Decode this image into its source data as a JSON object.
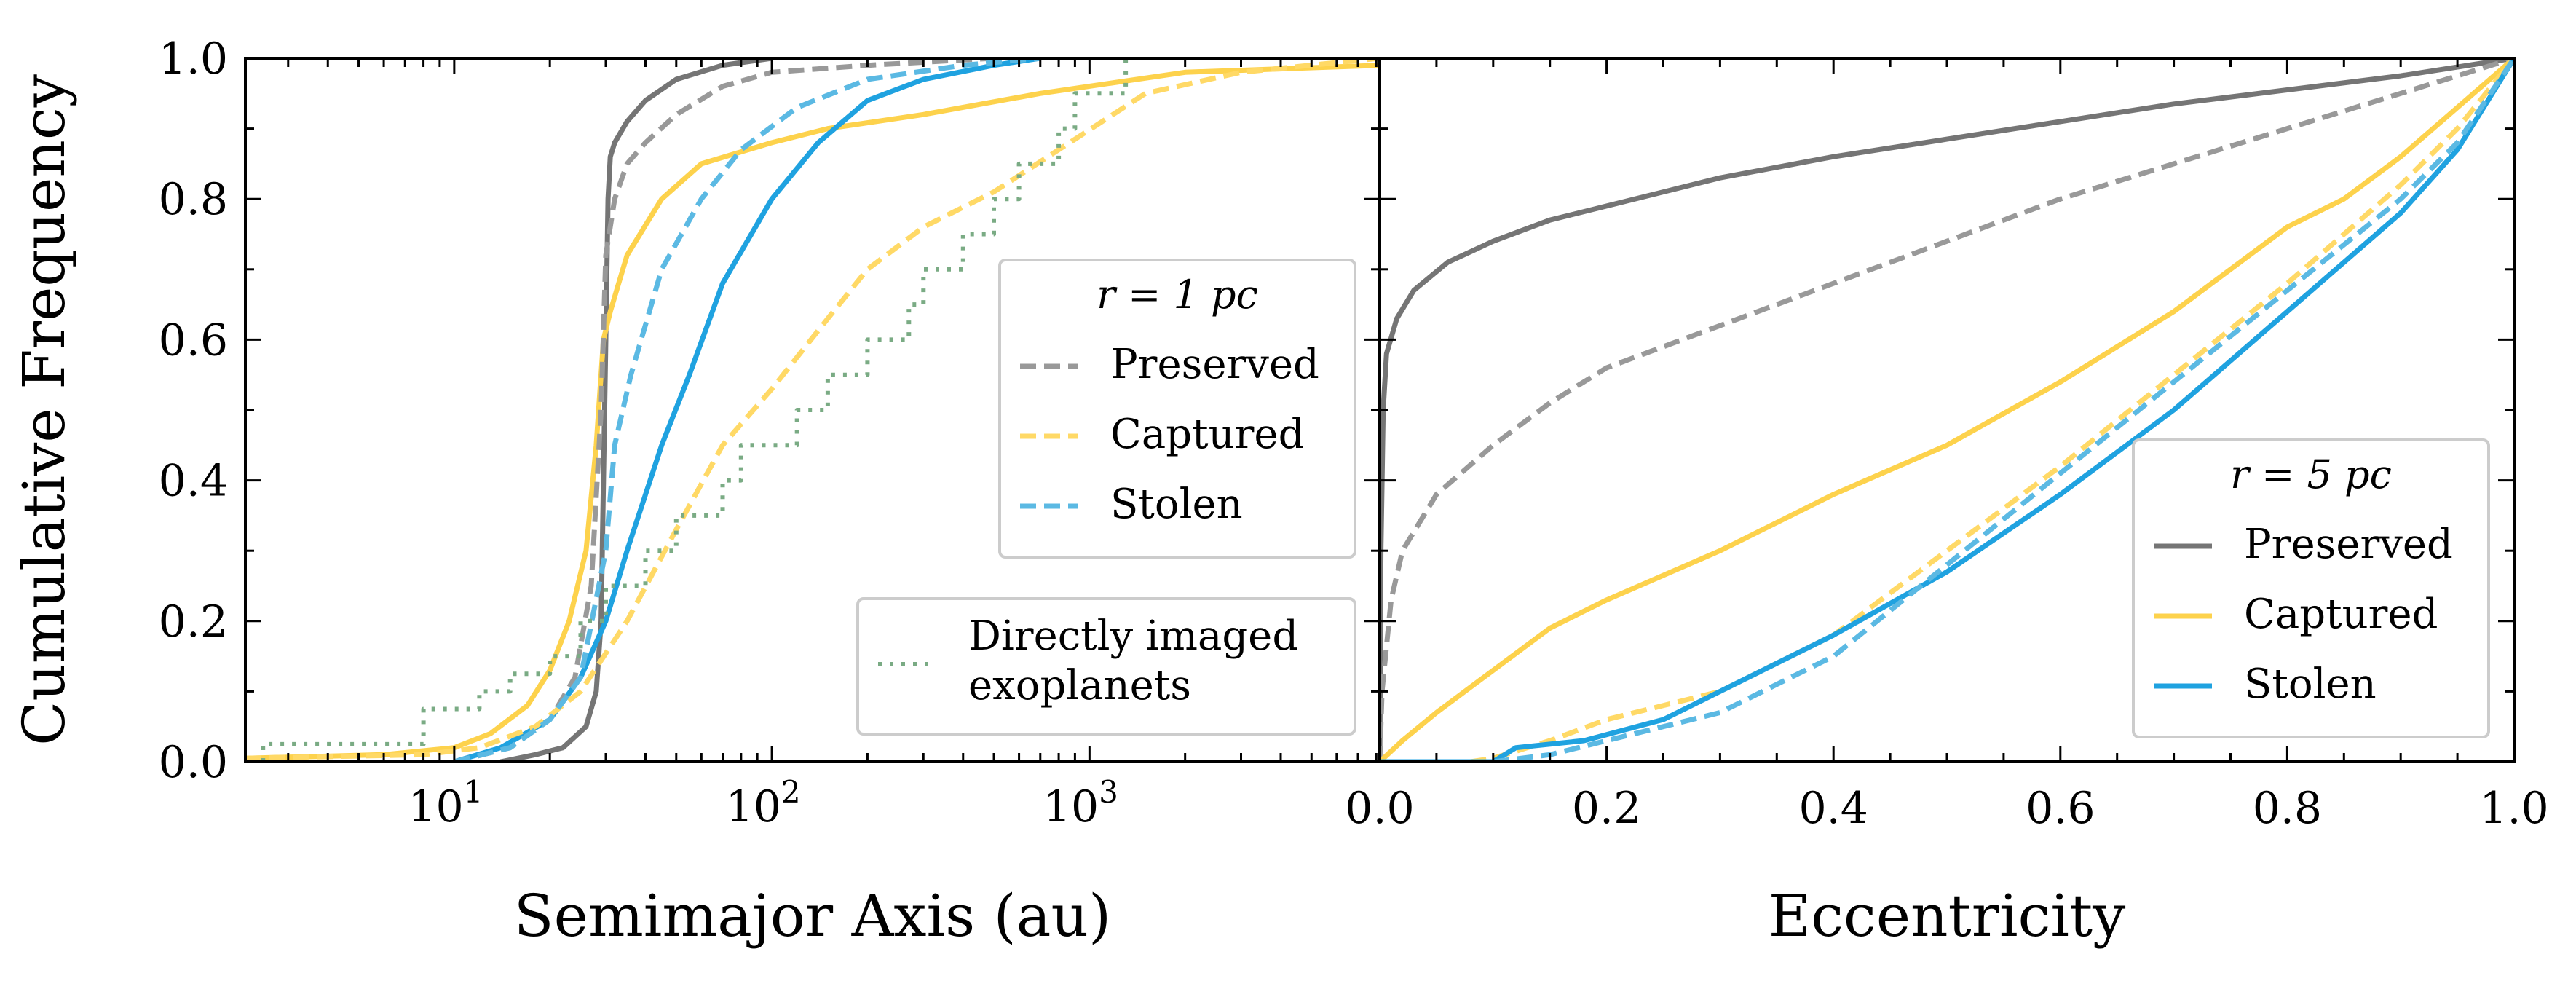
{
  "figure": {
    "ylabel": "Cumulative Frequency"
  },
  "chart_data": [
    {
      "type": "line",
      "panel": "left",
      "xlabel": "Semimajor Axis (au)",
      "ylabel": "Cumulative Frequency",
      "xscale": "log",
      "xlim": [
        2.2,
        8200
      ],
      "ylim": [
        0,
        1
      ],
      "xtick_labels": [
        {
          "base": "10",
          "exp": "1",
          "value": 10
        },
        {
          "base": "10",
          "exp": "2",
          "value": 100
        },
        {
          "base": "10",
          "exp": "3",
          "value": 1000
        }
      ],
      "ytick_labels": [
        "0.0",
        "0.2",
        "0.4",
        "0.6",
        "0.8",
        "1.0"
      ],
      "legends": [
        {
          "placement": "center-right",
          "title": "r = 1 pc",
          "entries": [
            {
              "label": "Preserved",
              "color": "#999999",
              "style": "dashed"
            },
            {
              "label": "Captured",
              "color": "#ffd966",
              "style": "dashed"
            },
            {
              "label": "Stolen",
              "color": "#5bb9e3",
              "style": "dashed"
            }
          ]
        },
        {
          "placement": "lower-right",
          "title": "",
          "entries": [
            {
              "label": "Directly imaged",
              "label2": "exoplanets",
              "color": "#7aab84",
              "style": "dotted"
            }
          ]
        }
      ],
      "series": [
        {
          "key": "preserved_5pc",
          "color": "#757575",
          "style": "solid",
          "points": [
            [
              14,
              0
            ],
            [
              18,
              0.01
            ],
            [
              22,
              0.02
            ],
            [
              26,
              0.05
            ],
            [
              28,
              0.1
            ],
            [
              29,
              0.2
            ],
            [
              29.5,
              0.4
            ],
            [
              30,
              0.6
            ],
            [
              30.5,
              0.8
            ],
            [
              31,
              0.86
            ],
            [
              32,
              0.88
            ],
            [
              35,
              0.91
            ],
            [
              40,
              0.94
            ],
            [
              50,
              0.97
            ],
            [
              70,
              0.99
            ],
            [
              100,
              1.0
            ]
          ]
        },
        {
          "key": "captured_5pc",
          "color": "#fdd24c",
          "style": "solid",
          "points": [
            [
              2.2,
              0.005
            ],
            [
              6,
              0.01
            ],
            [
              10,
              0.02
            ],
            [
              13,
              0.04
            ],
            [
              17,
              0.08
            ],
            [
              20,
              0.13
            ],
            [
              23,
              0.2
            ],
            [
              26,
              0.3
            ],
            [
              28,
              0.45
            ],
            [
              29.5,
              0.6
            ],
            [
              31,
              0.64
            ],
            [
              35,
              0.72
            ],
            [
              45,
              0.8
            ],
            [
              60,
              0.85
            ],
            [
              100,
              0.88
            ],
            [
              150,
              0.9
            ],
            [
              300,
              0.92
            ],
            [
              700,
              0.95
            ],
            [
              2000,
              0.98
            ],
            [
              8200,
              0.99
            ]
          ]
        },
        {
          "key": "stolen_5pc",
          "color": "#1fa2e0",
          "style": "solid",
          "points": [
            [
              10,
              0
            ],
            [
              14,
              0.02
            ],
            [
              20,
              0.06
            ],
            [
              25,
              0.12
            ],
            [
              30,
              0.2
            ],
            [
              35,
              0.3
            ],
            [
              45,
              0.45
            ],
            [
              55,
              0.55
            ],
            [
              70,
              0.68
            ],
            [
              100,
              0.8
            ],
            [
              140,
              0.88
            ],
            [
              200,
              0.94
            ],
            [
              300,
              0.97
            ],
            [
              500,
              0.99
            ],
            [
              700,
              1.0
            ]
          ]
        },
        {
          "key": "preserved_1pc",
          "color": "#999999",
          "style": "dashed",
          "points": [
            [
              10,
              0
            ],
            [
              15,
              0.02
            ],
            [
              20,
              0.06
            ],
            [
              24,
              0.12
            ],
            [
              27,
              0.25
            ],
            [
              29,
              0.5
            ],
            [
              30,
              0.72
            ],
            [
              32,
              0.8
            ],
            [
              35,
              0.85
            ],
            [
              40,
              0.88
            ],
            [
              50,
              0.92
            ],
            [
              70,
              0.96
            ],
            [
              100,
              0.98
            ],
            [
              200,
              0.99
            ],
            [
              500,
              1.0
            ]
          ]
        },
        {
          "key": "captured_1pc",
          "color": "#ffd966",
          "style": "dashed",
          "points": [
            [
              2.2,
              0.005
            ],
            [
              8,
              0.01
            ],
            [
              12,
              0.02
            ],
            [
              18,
              0.05
            ],
            [
              25,
              0.1
            ],
            [
              35,
              0.2
            ],
            [
              50,
              0.33
            ],
            [
              70,
              0.45
            ],
            [
              100,
              0.53
            ],
            [
              150,
              0.63
            ],
            [
              200,
              0.7
            ],
            [
              300,
              0.76
            ],
            [
              500,
              0.81
            ],
            [
              800,
              0.87
            ],
            [
              1500,
              0.95
            ],
            [
              3000,
              0.98
            ],
            [
              8200,
              1.0
            ]
          ]
        },
        {
          "key": "stolen_1pc",
          "color": "#5bb9e3",
          "style": "dashed",
          "points": [
            [
              10,
              0
            ],
            [
              15,
              0.02
            ],
            [
              20,
              0.06
            ],
            [
              25,
              0.12
            ],
            [
              30,
              0.3
            ],
            [
              32,
              0.45
            ],
            [
              36,
              0.55
            ],
            [
              45,
              0.7
            ],
            [
              60,
              0.8
            ],
            [
              80,
              0.87
            ],
            [
              120,
              0.93
            ],
            [
              200,
              0.97
            ],
            [
              400,
              0.99
            ],
            [
              700,
              1.0
            ]
          ]
        },
        {
          "key": "directly_imaged",
          "color": "#7aab84",
          "style": "dotted",
          "step": true,
          "points": [
            [
              2.5,
              0.0
            ],
            [
              2.5,
              0.025
            ],
            [
              8,
              0.025
            ],
            [
              8,
              0.075
            ],
            [
              12,
              0.075
            ],
            [
              12,
              0.1
            ],
            [
              15,
              0.1
            ],
            [
              15,
              0.125
            ],
            [
              20,
              0.125
            ],
            [
              20,
              0.15
            ],
            [
              25,
              0.15
            ],
            [
              25,
              0.2
            ],
            [
              30,
              0.2
            ],
            [
              30,
              0.25
            ],
            [
              40,
              0.25
            ],
            [
              40,
              0.3
            ],
            [
              50,
              0.3
            ],
            [
              50,
              0.35
            ],
            [
              70,
              0.35
            ],
            [
              70,
              0.4
            ],
            [
              80,
              0.4
            ],
            [
              80,
              0.45
            ],
            [
              120,
              0.45
            ],
            [
              120,
              0.5
            ],
            [
              150,
              0.5
            ],
            [
              150,
              0.55
            ],
            [
              200,
              0.55
            ],
            [
              200,
              0.6
            ],
            [
              270,
              0.6
            ],
            [
              270,
              0.65
            ],
            [
              300,
              0.65
            ],
            [
              300,
              0.7
            ],
            [
              400,
              0.7
            ],
            [
              400,
              0.75
            ],
            [
              500,
              0.75
            ],
            [
              500,
              0.8
            ],
            [
              600,
              0.8
            ],
            [
              600,
              0.85
            ],
            [
              800,
              0.85
            ],
            [
              800,
              0.9
            ],
            [
              900,
              0.9
            ],
            [
              900,
              0.95
            ],
            [
              1300,
              0.95
            ],
            [
              1300,
              1.0
            ],
            [
              2000,
              1.0
            ]
          ]
        }
      ]
    },
    {
      "type": "line",
      "panel": "right",
      "xlabel": "Eccentricity",
      "xlim": [
        0,
        1
      ],
      "ylim": [
        0,
        1
      ],
      "xtick_labels": [
        "0.0",
        "0.2",
        "0.4",
        "0.6",
        "0.8",
        "1.0"
      ],
      "legends": [
        {
          "placement": "lower-right",
          "title": "r = 5 pc",
          "entries": [
            {
              "label": "Preserved",
              "color": "#757575",
              "style": "solid"
            },
            {
              "label": "Captured",
              "color": "#fdd24c",
              "style": "solid"
            },
            {
              "label": "Stolen",
              "color": "#1fa2e0",
              "style": "solid"
            }
          ]
        }
      ],
      "series": [
        {
          "key": "preserved_5pc",
          "color": "#757575",
          "style": "solid",
          "points": [
            [
              0,
              0
            ],
            [
              0.001,
              0.3
            ],
            [
              0.003,
              0.5
            ],
            [
              0.006,
              0.58
            ],
            [
              0.015,
              0.63
            ],
            [
              0.03,
              0.67
            ],
            [
              0.06,
              0.71
            ],
            [
              0.1,
              0.74
            ],
            [
              0.15,
              0.77
            ],
            [
              0.2,
              0.79
            ],
            [
              0.3,
              0.83
            ],
            [
              0.4,
              0.86
            ],
            [
              0.5,
              0.885
            ],
            [
              0.6,
              0.91
            ],
            [
              0.7,
              0.935
            ],
            [
              0.8,
              0.955
            ],
            [
              0.9,
              0.975
            ],
            [
              1.0,
              1.0
            ]
          ]
        },
        {
          "key": "preserved_1pc",
          "color": "#999999",
          "style": "dashed",
          "points": [
            [
              0,
              0
            ],
            [
              0.002,
              0.1
            ],
            [
              0.01,
              0.23
            ],
            [
              0.02,
              0.3
            ],
            [
              0.05,
              0.38
            ],
            [
              0.1,
              0.45
            ],
            [
              0.15,
              0.51
            ],
            [
              0.2,
              0.56
            ],
            [
              0.3,
              0.62
            ],
            [
              0.4,
              0.68
            ],
            [
              0.5,
              0.74
            ],
            [
              0.6,
              0.8
            ],
            [
              0.7,
              0.85
            ],
            [
              0.8,
              0.9
            ],
            [
              0.9,
              0.95
            ],
            [
              1.0,
              1.0
            ]
          ]
        },
        {
          "key": "captured_5pc",
          "color": "#fdd24c",
          "style": "solid",
          "points": [
            [
              0,
              0
            ],
            [
              0.02,
              0.03
            ],
            [
              0.05,
              0.07
            ],
            [
              0.1,
              0.13
            ],
            [
              0.15,
              0.19
            ],
            [
              0.2,
              0.23
            ],
            [
              0.3,
              0.3
            ],
            [
              0.4,
              0.38
            ],
            [
              0.5,
              0.45
            ],
            [
              0.6,
              0.54
            ],
            [
              0.7,
              0.64
            ],
            [
              0.75,
              0.7
            ],
            [
              0.8,
              0.76
            ],
            [
              0.85,
              0.8
            ],
            [
              0.9,
              0.86
            ],
            [
              0.95,
              0.93
            ],
            [
              1.0,
              1.0
            ]
          ]
        },
        {
          "key": "captured_1pc",
          "color": "#ffd966",
          "style": "dashed",
          "points": [
            [
              0.08,
              0
            ],
            [
              0.1,
              0.005
            ],
            [
              0.15,
              0.03
            ],
            [
              0.2,
              0.06
            ],
            [
              0.3,
              0.1
            ],
            [
              0.4,
              0.18
            ],
            [
              0.5,
              0.3
            ],
            [
              0.6,
              0.42
            ],
            [
              0.7,
              0.55
            ],
            [
              0.8,
              0.68
            ],
            [
              0.9,
              0.82
            ],
            [
              0.95,
              0.9
            ],
            [
              1.0,
              1.0
            ]
          ]
        },
        {
          "key": "stolen_5pc",
          "color": "#1fa2e0",
          "style": "solid",
          "points": [
            [
              0,
              0
            ],
            [
              0.1,
              0
            ],
            [
              0.12,
              0.02
            ],
            [
              0.18,
              0.03
            ],
            [
              0.25,
              0.06
            ],
            [
              0.3,
              0.1
            ],
            [
              0.35,
              0.14
            ],
            [
              0.4,
              0.18
            ],
            [
              0.5,
              0.27
            ],
            [
              0.6,
              0.38
            ],
            [
              0.7,
              0.5
            ],
            [
              0.8,
              0.64
            ],
            [
              0.9,
              0.78
            ],
            [
              0.95,
              0.87
            ],
            [
              1.0,
              1.0
            ]
          ]
        },
        {
          "key": "stolen_1pc",
          "color": "#5bb9e3",
          "style": "dashed",
          "points": [
            [
              0.1,
              0
            ],
            [
              0.15,
              0.01
            ],
            [
              0.2,
              0.03
            ],
            [
              0.3,
              0.07
            ],
            [
              0.4,
              0.15
            ],
            [
              0.5,
              0.28
            ],
            [
              0.6,
              0.41
            ],
            [
              0.7,
              0.54
            ],
            [
              0.8,
              0.67
            ],
            [
              0.9,
              0.8
            ],
            [
              0.95,
              0.88
            ],
            [
              1.0,
              1.0
            ]
          ]
        }
      ]
    }
  ]
}
